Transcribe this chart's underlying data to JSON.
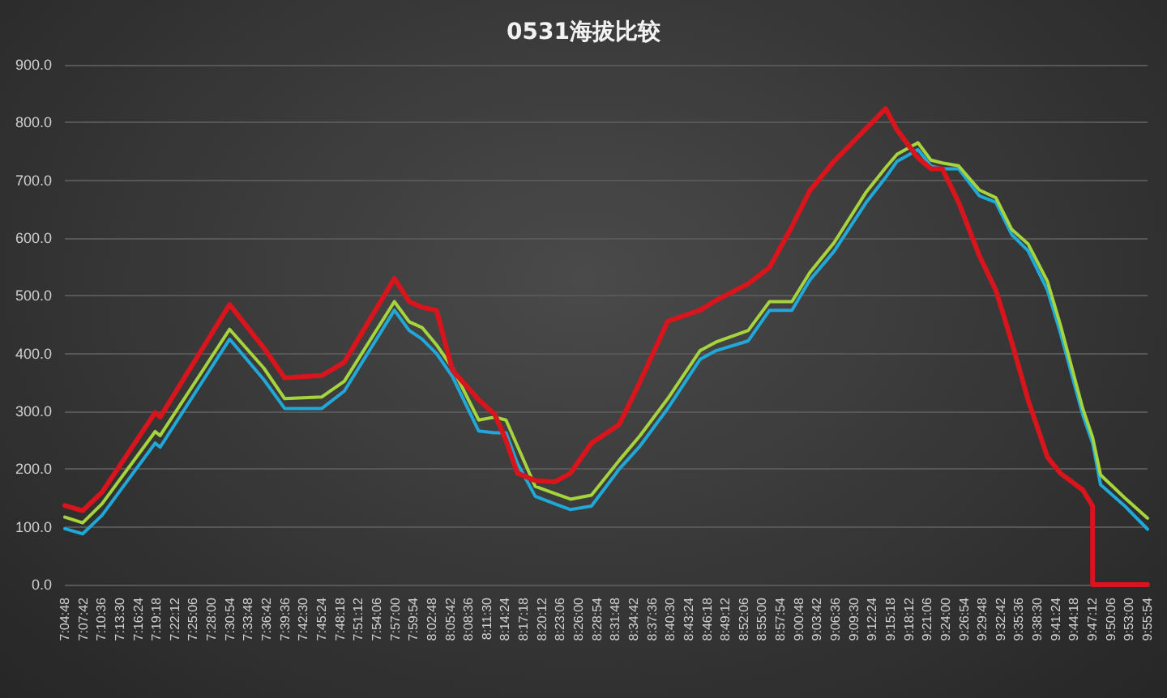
{
  "chart_data": {
    "type": "line",
    "title": "0531海拔比较",
    "x": [
      7.08,
      7.127,
      7.178,
      7.318,
      7.331,
      7.514,
      7.604,
      7.659,
      7.757,
      7.816,
      7.948,
      7.987,
      8.021,
      8.059,
      8.101,
      8.17,
      8.212,
      8.242,
      8.272,
      8.319,
      8.37,
      8.412,
      8.467,
      8.54,
      8.595,
      8.668,
      8.753,
      8.795,
      8.88,
      8.936,
      8.995,
      9.042,
      9.106,
      9.191,
      9.242,
      9.272,
      9.327,
      9.361,
      9.391,
      9.434,
      9.489,
      9.532,
      9.574,
      9.617,
      9.668,
      9.702,
      9.761,
      9.787,
      9.808,
      9.872,
      9.9317
    ],
    "series": [
      {
        "color": "#1fa8d8",
        "values": [
          97,
          88,
          120,
          245,
          238,
          425,
          355,
          305,
          305,
          335,
          475,
          440,
          425,
          400,
          360,
          266,
          263,
          263,
          210,
          153,
          140,
          130,
          136,
          200,
          240,
          305,
          390,
          405,
          422,
          475,
          475,
          527,
          577,
          662,
          705,
          733,
          753,
          725,
          720,
          720,
          673,
          662,
          606,
          578,
          510,
          436,
          294,
          245,
          173,
          136,
          96
        ]
      },
      {
        "color": "#a6d43c",
        "values": [
          117,
          107,
          140,
          265,
          258,
          442,
          375,
          322,
          325,
          352,
          490,
          455,
          445,
          415,
          375,
          285,
          290,
          285,
          240,
          170,
          158,
          148,
          155,
          215,
          258,
          322,
          405,
          420,
          440,
          490,
          490,
          540,
          592,
          680,
          722,
          745,
          765,
          735,
          730,
          725,
          683,
          670,
          615,
          590,
          525,
          450,
          305,
          255,
          190,
          150,
          115
        ]
      },
      {
        "color": "#d8141c",
        "x": [
          7.08,
          7.127,
          7.178,
          7.318,
          7.331,
          7.514,
          7.604,
          7.659,
          7.757,
          7.816,
          7.948,
          7.987,
          8.021,
          8.059,
          8.101,
          8.17,
          8.212,
          8.242,
          8.272,
          8.319,
          8.37,
          8.412,
          8.467,
          8.54,
          8.595,
          8.668,
          8.753,
          8.795,
          8.88,
          8.936,
          8.995,
          9.042,
          9.106,
          9.191,
          9.242,
          9.272,
          9.327,
          9.361,
          9.391,
          9.434,
          9.489,
          9.532,
          9.574,
          9.617,
          9.668,
          9.702,
          9.761,
          9.787,
          9.787,
          9.808,
          9.872,
          9.9317
        ],
        "values": [
          137,
          128,
          160,
          298,
          290,
          485,
          410,
          358,
          362,
          385,
          530,
          490,
          480,
          475,
          371,
          320,
          295,
          250,
          193,
          180,
          178,
          193,
          245,
          277,
          351,
          456,
          475,
          492,
          521,
          549,
          620,
          682,
          733,
          790,
          824,
          787,
          739,
          720,
          720,
          662,
          569,
          510,
          420,
          320,
          221,
          193,
          164,
          136,
          0,
          0,
          0,
          0
        ]
      }
    ],
    "xlim": [
      7.08,
      9.9317
    ],
    "xticks": [
      {
        "value": 7.08,
        "label": "7:04:48"
      },
      {
        "value": 7.1283,
        "label": "7:07:42"
      },
      {
        "value": 7.1767,
        "label": "7:10:36"
      },
      {
        "value": 7.225,
        "label": "7:13:30"
      },
      {
        "value": 7.2733,
        "label": "7:16:24"
      },
      {
        "value": 7.3217,
        "label": "7:19:18"
      },
      {
        "value": 7.37,
        "label": "7:22:12"
      },
      {
        "value": 7.4183,
        "label": "7:25:06"
      },
      {
        "value": 7.4667,
        "label": "7:28:00"
      },
      {
        "value": 7.515,
        "label": "7:30:54"
      },
      {
        "value": 7.5633,
        "label": "7:33:48"
      },
      {
        "value": 7.6117,
        "label": "7:36:42"
      },
      {
        "value": 7.66,
        "label": "7:39:36"
      },
      {
        "value": 7.7083,
        "label": "7:42:30"
      },
      {
        "value": 7.7567,
        "label": "7:45:24"
      },
      {
        "value": 7.805,
        "label": "7:48:18"
      },
      {
        "value": 7.8533,
        "label": "7:51:12"
      },
      {
        "value": 7.9017,
        "label": "7:54:06"
      },
      {
        "value": 7.95,
        "label": "7:57:00"
      },
      {
        "value": 7.9983,
        "label": "7:59:54"
      },
      {
        "value": 8.0467,
        "label": "8:02:48"
      },
      {
        "value": 8.095,
        "label": "8:05:42"
      },
      {
        "value": 8.1433,
        "label": "8:08:36"
      },
      {
        "value": 8.1917,
        "label": "8:11:30"
      },
      {
        "value": 8.24,
        "label": "8:14:24"
      },
      {
        "value": 8.2883,
        "label": "8:17:18"
      },
      {
        "value": 8.3367,
        "label": "8:20:12"
      },
      {
        "value": 8.385,
        "label": "8:23:06"
      },
      {
        "value": 8.4333,
        "label": "8:26:00"
      },
      {
        "value": 8.4817,
        "label": "8:28:54"
      },
      {
        "value": 8.53,
        "label": "8:31:48"
      },
      {
        "value": 8.5783,
        "label": "8:34:42"
      },
      {
        "value": 8.6267,
        "label": "8:37:36"
      },
      {
        "value": 8.675,
        "label": "8:40:30"
      },
      {
        "value": 8.7233,
        "label": "8:43:24"
      },
      {
        "value": 8.7717,
        "label": "8:46:18"
      },
      {
        "value": 8.82,
        "label": "8:49:12"
      },
      {
        "value": 8.8683,
        "label": "8:52:06"
      },
      {
        "value": 8.9167,
        "label": "8:55:00"
      },
      {
        "value": 8.965,
        "label": "8:57:54"
      },
      {
        "value": 9.0133,
        "label": "9:00:48"
      },
      {
        "value": 9.0617,
        "label": "9:03:42"
      },
      {
        "value": 9.11,
        "label": "9:06:36"
      },
      {
        "value": 9.1583,
        "label": "9:09:30"
      },
      {
        "value": 9.2067,
        "label": "9:12:24"
      },
      {
        "value": 9.255,
        "label": "9:15:18"
      },
      {
        "value": 9.3033,
        "label": "9:18:12"
      },
      {
        "value": 9.3517,
        "label": "9:21:06"
      },
      {
        "value": 9.4,
        "label": "9:24:00"
      },
      {
        "value": 9.4483,
        "label": "9:26:54"
      },
      {
        "value": 9.4967,
        "label": "9:29:48"
      },
      {
        "value": 9.545,
        "label": "9:32:42"
      },
      {
        "value": 9.5933,
        "label": "9:35:36"
      },
      {
        "value": 9.6417,
        "label": "9:38:30"
      },
      {
        "value": 9.69,
        "label": "9:41:24"
      },
      {
        "value": 9.7383,
        "label": "9:44:18"
      },
      {
        "value": 9.7867,
        "label": "9:47:12"
      },
      {
        "value": 9.835,
        "label": "9:50:06"
      },
      {
        "value": 9.8833,
        "label": "9:53:00"
      },
      {
        "value": 9.9317,
        "label": "9:55:54"
      }
    ],
    "ylim": [
      0,
      900
    ],
    "yticks": [
      {
        "value": 0,
        "label": "0.0"
      },
      {
        "value": 100,
        "label": "100.0"
      },
      {
        "value": 200,
        "label": "200.0"
      },
      {
        "value": 300,
        "label": "300.0"
      },
      {
        "value": 400,
        "label": "400.0"
      },
      {
        "value": 500,
        "label": "500.0"
      },
      {
        "value": 600,
        "label": "600.0"
      },
      {
        "value": 700,
        "label": "700.0"
      },
      {
        "value": 800,
        "label": "800.0"
      },
      {
        "value": 900,
        "label": "900.0"
      }
    ],
    "grid": "y",
    "marker": "none",
    "line_style": "solid"
  }
}
